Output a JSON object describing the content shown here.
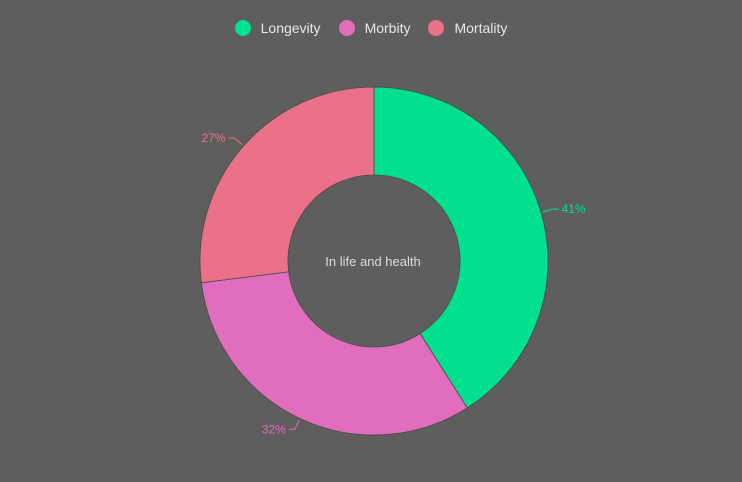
{
  "chart_data": {
    "type": "pie",
    "variant": "donut",
    "center_label": "In life and health",
    "categories": [
      "Longevity",
      "Morbity",
      "Mortality"
    ],
    "values": [
      41,
      32,
      27
    ],
    "value_labels": [
      "41%",
      "32%",
      "27%"
    ],
    "colors": [
      "#00e08e",
      "#e06dbd",
      "#ea7187"
    ],
    "legend_position": "top-center"
  },
  "colors": {
    "background": "#5e5e5e",
    "legend_text": "#e8e8e8",
    "center_text": "#dddddd"
  }
}
